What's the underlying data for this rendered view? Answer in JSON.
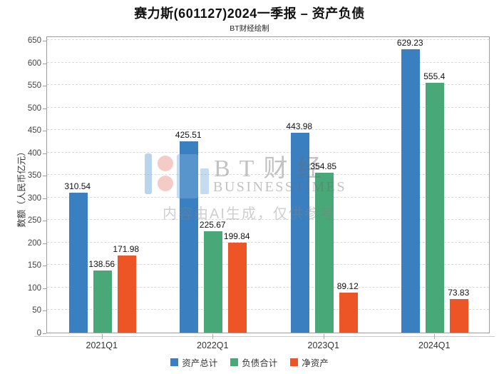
{
  "chart_data": {
    "type": "bar",
    "title": "赛力斯(601127)2024一季报 – 资产负债",
    "subtitle": "BT财经绘制",
    "categories": [
      "2021Q1",
      "2022Q1",
      "2023Q1",
      "2024Q1"
    ],
    "series": [
      {
        "name": "资产总计",
        "color": "#3a80c0",
        "values": [
          310.54,
          425.51,
          443.98,
          629.23
        ]
      },
      {
        "name": "负债合计",
        "color": "#49a878",
        "values": [
          138.56,
          225.67,
          354.85,
          555.4
        ]
      },
      {
        "name": "净资产",
        "color": "#ed5426",
        "values": [
          171.98,
          199.84,
          89.12,
          73.83
        ]
      }
    ],
    "xlabel": "",
    "ylabel": "数额（人民币亿元）",
    "ylim": [
      0,
      650
    ],
    "ytick_step": 50,
    "grid": "horizontal dashed",
    "legend_position": "bottom",
    "value_labels_shown": true
  },
  "watermark": {
    "brand_cn": "BT财经",
    "brand_en": "BUSINESSTIMES",
    "disclaimer": "内容由AI生成，仅供参考"
  }
}
